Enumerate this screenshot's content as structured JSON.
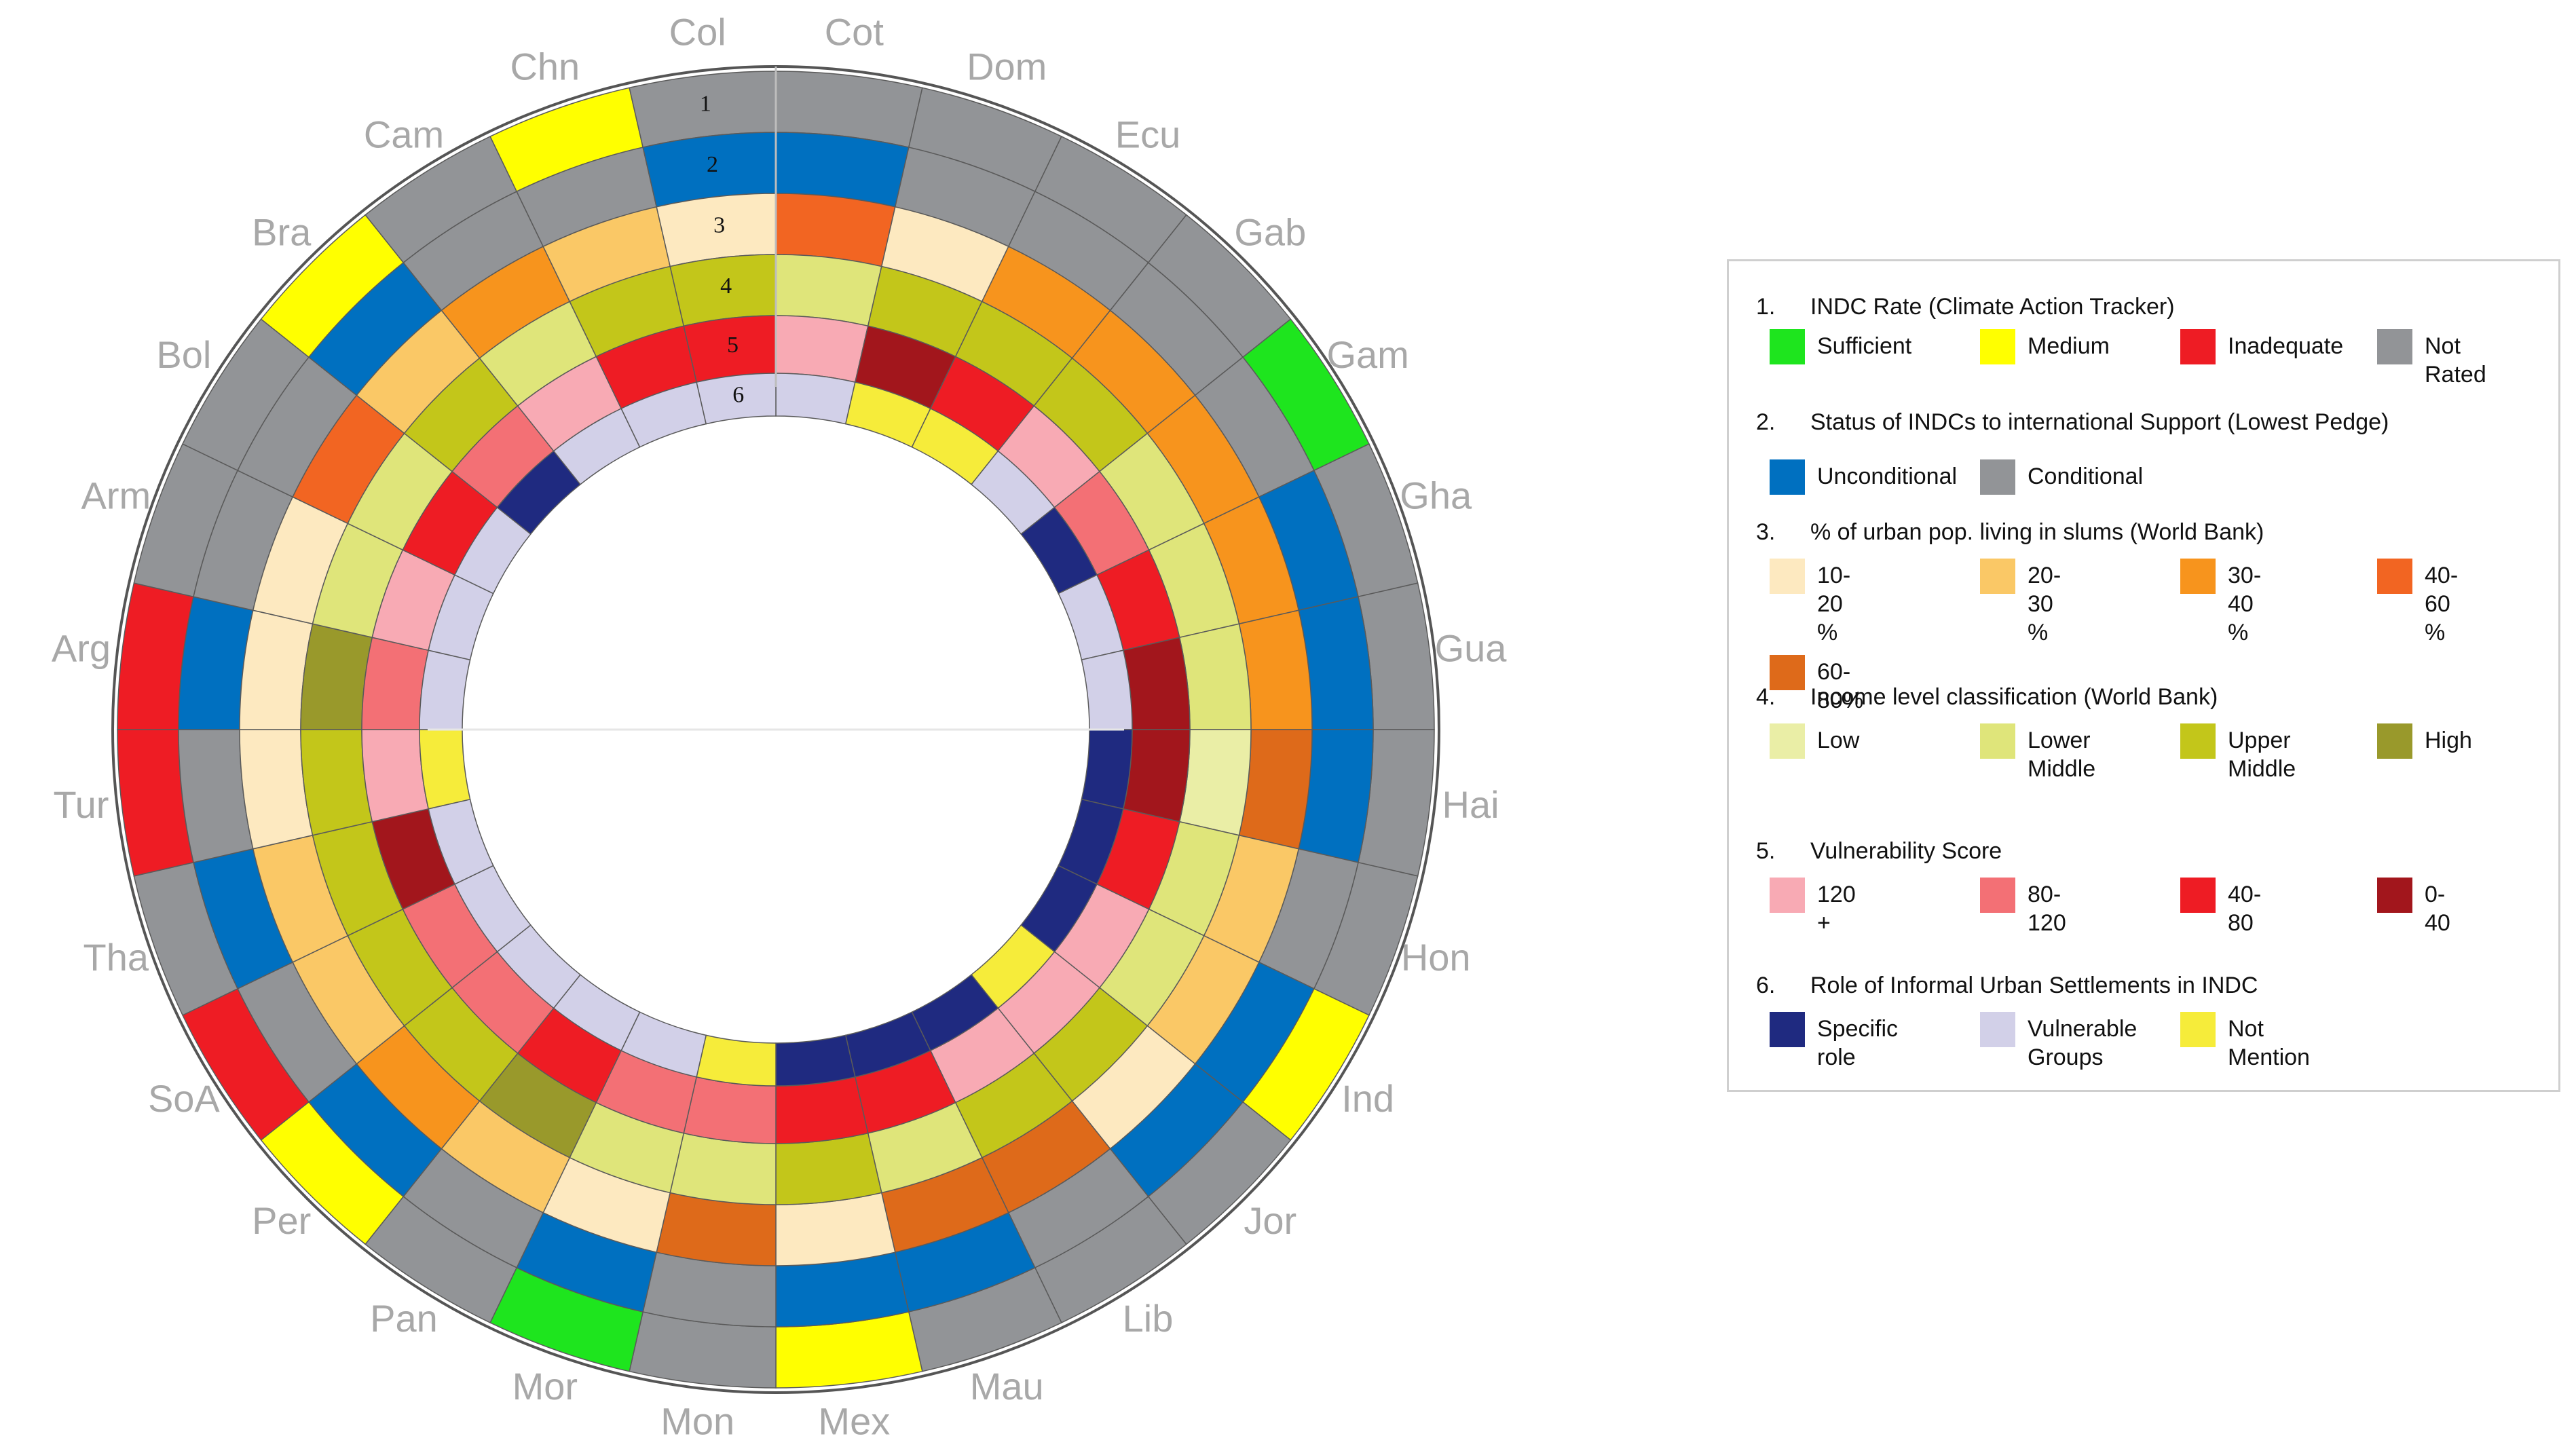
{
  "chart_data": {
    "type": "radial-heatmap",
    "countries": [
      "Cot",
      "Dom",
      "Ecu",
      "Gab",
      "Gam",
      "Gha",
      "Gua",
      "Hai",
      "Hon",
      "Ind",
      "Jor",
      "Lib",
      "Mau",
      "Mex",
      "Mon",
      "Mor",
      "Pan",
      "Per",
      "SoA",
      "Tha",
      "Tur",
      "Arg",
      "Arm",
      "Bol",
      "Bra",
      "Cam",
      "Chn",
      "Col"
    ],
    "ring_numbers": [
      "1",
      "2",
      "3",
      "4",
      "5",
      "6"
    ],
    "legend": [
      {
        "num": "1.",
        "title": "INDC Rate (Climate Action Tracker)",
        "items": [
          {
            "key": "suf",
            "label": "Sufficient",
            "color": "#1ee51e"
          },
          {
            "key": "med",
            "label": "Medium",
            "color": "#ffff00"
          },
          {
            "key": "inad",
            "label": "Inadequate",
            "color": "#ee1c24"
          },
          {
            "key": "nr",
            "label": "Not Rated",
            "color": "#929497"
          }
        ]
      },
      {
        "num": "2.",
        "title": "Status of INDCs to international Support (Lowest Pedge)",
        "items": [
          {
            "key": "unc",
            "label": "Unconditional",
            "color": "#0070c0"
          },
          {
            "key": "con",
            "label": "Conditional",
            "color": "#929497"
          }
        ]
      },
      {
        "num": "3.",
        "title": "% of urban pop. living in slums (World Bank)",
        "items": [
          {
            "key": "s1",
            "label": "10- 20 %",
            "color": "#fde9c0"
          },
          {
            "key": "s2",
            "label": "20- 30 %",
            "color": "#fac866"
          },
          {
            "key": "s3",
            "label": "30- 40 %",
            "color": "#f7941d"
          },
          {
            "key": "s4",
            "label": "40- 60 %",
            "color": "#f26522"
          },
          {
            "key": "s5",
            "label": "60- 80%",
            "color": "#de6a1a"
          }
        ]
      },
      {
        "num": "4.",
        "title": "Income level classification (World Bank)",
        "items": [
          {
            "key": "low",
            "label": "Low",
            "color": "#eaeea6"
          },
          {
            "key": "lmid",
            "label": "Lower\nMiddle",
            "color": "#dfe57a"
          },
          {
            "key": "umid",
            "label": "Upper\nMiddle",
            "color": "#c3c61a"
          },
          {
            "key": "high",
            "label": "High",
            "color": "#99992b"
          }
        ]
      },
      {
        "num": "5.",
        "title": "Vulnerability Score",
        "items": [
          {
            "key": "v120",
            "label": "120 +",
            "color": "#f8aab4"
          },
          {
            "key": "v80",
            "label": "80-120",
            "color": "#f37075"
          },
          {
            "key": "v40",
            "label": "40- 80",
            "color": "#ee1c24"
          },
          {
            "key": "v0",
            "label": "0- 40",
            "color": "#a2161c"
          }
        ]
      },
      {
        "num": "6.",
        "title": "Role of Informal Urban Settlements in INDC",
        "items": [
          {
            "key": "sr",
            "label": "Specific role",
            "color": "#1f2a80"
          },
          {
            "key": "vg",
            "label": "Vulnerable\nGroups",
            "color": "#d2d0e8"
          },
          {
            "key": "nm",
            "label": "Not Mention",
            "color": "#f6ec3a"
          }
        ]
      }
    ],
    "rings": [
      [
        "nr",
        "nr",
        "nr",
        "nr",
        "suf",
        "nr",
        "nr",
        "nr",
        "nr",
        "med",
        "nr",
        "nr",
        "nr",
        "med",
        "nr",
        "suf",
        "nr",
        "med",
        "inad",
        "nr",
        "inad",
        "inad",
        "nr",
        "nr",
        "med",
        "nr",
        "med",
        "nr"
      ],
      [
        "unc",
        "con",
        "con",
        "con",
        "con",
        "unc",
        "unc",
        "unc",
        "con",
        "unc",
        "unc",
        "con",
        "unc",
        "unc",
        "con",
        "unc",
        "con",
        "unc",
        "con",
        "unc",
        "con",
        "unc",
        "con",
        "con",
        "unc",
        "con",
        "con",
        "unc"
      ],
      [
        "s4",
        "s1",
        "s3",
        "s3",
        "s3",
        "s3",
        "s3",
        "s5",
        "s2",
        "s2",
        "s1",
        "s5",
        "s5",
        "s1",
        "s5",
        "s1",
        "s2",
        "s3",
        "s2",
        "s2",
        "s1",
        "s1",
        "s1",
        "s4",
        "s2",
        "s3",
        "s2",
        "s1"
      ],
      [
        "lmid",
        "umid",
        "umid",
        "umid",
        "lmid",
        "lmid",
        "lmid",
        "low",
        "lmid",
        "lmid",
        "umid",
        "umid",
        "lmid",
        "umid",
        "lmid",
        "lmid",
        "high",
        "umid",
        "umid",
        "umid",
        "umid",
        "high",
        "lmid",
        "lmid",
        "umid",
        "lmid",
        "umid",
        "umid"
      ],
      [
        "v120",
        "v0",
        "v40",
        "v120",
        "v80",
        "v40",
        "v0",
        "v0",
        "v40",
        "v120",
        "v120",
        "v120",
        "v40",
        "v40",
        "v80",
        "v80",
        "v40",
        "v80",
        "v80",
        "v0",
        "v120",
        "v80",
        "v120",
        "v40",
        "v80",
        "v120",
        "v40",
        "v40"
      ],
      [
        "vg",
        "nm",
        "nm",
        "vg",
        "sr",
        "vg",
        "vg",
        "sr",
        "sr",
        "sr",
        "nm",
        "sr",
        "sr",
        "sr",
        "nm",
        "vg",
        "vg",
        "vg",
        "vg",
        "vg",
        "nm",
        "vg",
        "vg",
        "vg",
        "sr",
        "vg",
        "vg",
        "vg"
      ]
    ]
  }
}
